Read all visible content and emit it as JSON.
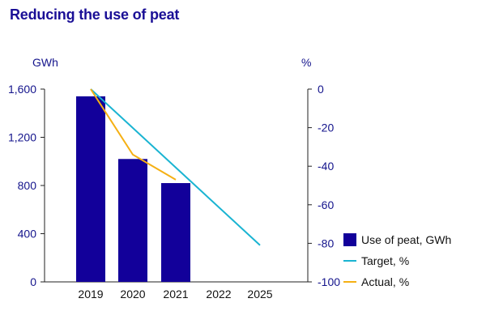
{
  "chart_data": {
    "type": "bar",
    "title": "Reducing the use of peat",
    "categories": [
      "2019",
      "2020",
      "2021",
      "2022",
      "2025"
    ],
    "left_axis": {
      "unit": "GWh",
      "ylim": [
        0,
        1600
      ],
      "ticks": [
        "1,600",
        "1,200",
        "800",
        "400",
        "0"
      ],
      "tick_values": [
        1600,
        1200,
        800,
        400,
        0
      ]
    },
    "right_axis": {
      "unit": "%",
      "ylim": [
        -100,
        0
      ],
      "ticks": [
        "0",
        "-20",
        "-40",
        "-60",
        "-80",
        "-100"
      ],
      "tick_values": [
        0,
        -20,
        -40,
        -60,
        -80,
        -100
      ]
    },
    "series": [
      {
        "name": "Use of peat, GWh",
        "kind": "bar",
        "axis": "left",
        "color": "#12009a",
        "values": [
          1540,
          1020,
          820,
          null,
          null
        ]
      },
      {
        "name": "Target, %",
        "kind": "line",
        "axis": "right",
        "color": "#1ab4d2",
        "values": [
          0,
          null,
          null,
          null,
          -81
        ]
      },
      {
        "name": "Actual, %",
        "kind": "line",
        "axis": "right",
        "color": "#f5b014",
        "values": [
          0,
          -34,
          -47,
          null,
          null
        ]
      }
    ],
    "grid": false,
    "legend_position": "bottom-right"
  }
}
